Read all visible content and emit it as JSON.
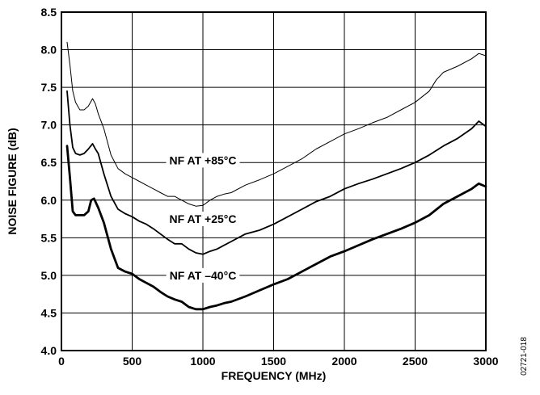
{
  "chart_data": {
    "type": "line",
    "xlabel": "FREQUENCY (MHz)",
    "ylabel": "NOISE FIGURE (dB)",
    "xlim": [
      0,
      3000
    ],
    "ylim": [
      4.0,
      8.5
    ],
    "x_ticks": [
      0,
      500,
      1000,
      1500,
      2000,
      2500,
      3000
    ],
    "y_ticks": [
      4.0,
      4.5,
      5.0,
      5.5,
      6.0,
      6.5,
      7.0,
      7.5,
      8.0,
      8.5
    ],
    "y_tick_labels": [
      "4.0",
      "4.5",
      "5.0",
      "5.5",
      "6.0",
      "6.5",
      "7.0",
      "7.5",
      "8.0",
      "8.5"
    ],
    "grid": true,
    "side_label": "02721-018",
    "series": [
      {
        "name": "NF AT +85°C",
        "line_style": "thin",
        "points": [
          [
            40,
            8.1
          ],
          [
            60,
            7.8
          ],
          [
            80,
            7.45
          ],
          [
            100,
            7.3
          ],
          [
            130,
            7.2
          ],
          [
            160,
            7.2
          ],
          [
            190,
            7.25
          ],
          [
            220,
            7.35
          ],
          [
            240,
            7.28
          ],
          [
            260,
            7.15
          ],
          [
            300,
            6.95
          ],
          [
            350,
            6.6
          ],
          [
            400,
            6.42
          ],
          [
            450,
            6.35
          ],
          [
            500,
            6.3
          ],
          [
            550,
            6.25
          ],
          [
            600,
            6.2
          ],
          [
            650,
            6.15
          ],
          [
            700,
            6.1
          ],
          [
            750,
            6.05
          ],
          [
            800,
            6.05
          ],
          [
            850,
            6.0
          ],
          [
            900,
            5.95
          ],
          [
            950,
            5.92
          ],
          [
            1000,
            5.93
          ],
          [
            1050,
            6.0
          ],
          [
            1100,
            6.05
          ],
          [
            1150,
            6.08
          ],
          [
            1200,
            6.1
          ],
          [
            1300,
            6.2
          ],
          [
            1400,
            6.27
          ],
          [
            1500,
            6.35
          ],
          [
            1600,
            6.45
          ],
          [
            1700,
            6.55
          ],
          [
            1800,
            6.68
          ],
          [
            1900,
            6.78
          ],
          [
            2000,
            6.88
          ],
          [
            2100,
            6.95
          ],
          [
            2200,
            7.03
          ],
          [
            2300,
            7.1
          ],
          [
            2400,
            7.2
          ],
          [
            2500,
            7.3
          ],
          [
            2600,
            7.45
          ],
          [
            2650,
            7.6
          ],
          [
            2700,
            7.7
          ],
          [
            2800,
            7.78
          ],
          [
            2900,
            7.88
          ],
          [
            2950,
            7.95
          ],
          [
            3000,
            7.92
          ]
        ]
      },
      {
        "name": "NF AT +25°C",
        "line_style": "medium",
        "points": [
          [
            40,
            7.45
          ],
          [
            60,
            7.0
          ],
          [
            80,
            6.7
          ],
          [
            100,
            6.62
          ],
          [
            130,
            6.6
          ],
          [
            160,
            6.62
          ],
          [
            190,
            6.68
          ],
          [
            220,
            6.75
          ],
          [
            240,
            6.68
          ],
          [
            260,
            6.62
          ],
          [
            300,
            6.35
          ],
          [
            350,
            6.05
          ],
          [
            400,
            5.88
          ],
          [
            450,
            5.82
          ],
          [
            500,
            5.78
          ],
          [
            550,
            5.72
          ],
          [
            600,
            5.68
          ],
          [
            650,
            5.62
          ],
          [
            700,
            5.55
          ],
          [
            750,
            5.48
          ],
          [
            800,
            5.42
          ],
          [
            850,
            5.42
          ],
          [
            900,
            5.35
          ],
          [
            950,
            5.3
          ],
          [
            1000,
            5.28
          ],
          [
            1050,
            5.32
          ],
          [
            1100,
            5.35
          ],
          [
            1150,
            5.4
          ],
          [
            1200,
            5.45
          ],
          [
            1300,
            5.55
          ],
          [
            1400,
            5.6
          ],
          [
            1500,
            5.68
          ],
          [
            1600,
            5.78
          ],
          [
            1700,
            5.88
          ],
          [
            1800,
            5.98
          ],
          [
            1900,
            6.05
          ],
          [
            2000,
            6.15
          ],
          [
            2100,
            6.22
          ],
          [
            2200,
            6.28
          ],
          [
            2300,
            6.35
          ],
          [
            2400,
            6.42
          ],
          [
            2500,
            6.5
          ],
          [
            2600,
            6.6
          ],
          [
            2700,
            6.72
          ],
          [
            2800,
            6.82
          ],
          [
            2900,
            6.95
          ],
          [
            2950,
            7.05
          ],
          [
            3000,
            6.98
          ]
        ]
      },
      {
        "name": "NF AT –40°C",
        "line_style": "thick",
        "points": [
          [
            40,
            6.72
          ],
          [
            60,
            6.3
          ],
          [
            80,
            5.85
          ],
          [
            100,
            5.8
          ],
          [
            130,
            5.8
          ],
          [
            160,
            5.8
          ],
          [
            190,
            5.85
          ],
          [
            210,
            6.0
          ],
          [
            230,
            6.02
          ],
          [
            260,
            5.9
          ],
          [
            300,
            5.7
          ],
          [
            350,
            5.35
          ],
          [
            400,
            5.1
          ],
          [
            450,
            5.05
          ],
          [
            500,
            5.02
          ],
          [
            550,
            4.95
          ],
          [
            600,
            4.9
          ],
          [
            650,
            4.85
          ],
          [
            700,
            4.78
          ],
          [
            750,
            4.72
          ],
          [
            800,
            4.68
          ],
          [
            850,
            4.65
          ],
          [
            900,
            4.58
          ],
          [
            950,
            4.55
          ],
          [
            1000,
            4.55
          ],
          [
            1050,
            4.58
          ],
          [
            1100,
            4.6
          ],
          [
            1150,
            4.63
          ],
          [
            1200,
            4.65
          ],
          [
            1300,
            4.72
          ],
          [
            1400,
            4.8
          ],
          [
            1500,
            4.88
          ],
          [
            1600,
            4.95
          ],
          [
            1700,
            5.05
          ],
          [
            1800,
            5.15
          ],
          [
            1900,
            5.25
          ],
          [
            2000,
            5.32
          ],
          [
            2100,
            5.4
          ],
          [
            2200,
            5.48
          ],
          [
            2300,
            5.55
          ],
          [
            2400,
            5.62
          ],
          [
            2500,
            5.7
          ],
          [
            2600,
            5.8
          ],
          [
            2700,
            5.95
          ],
          [
            2800,
            6.05
          ],
          [
            2900,
            6.15
          ],
          [
            2950,
            6.22
          ],
          [
            3000,
            6.18
          ]
        ]
      }
    ],
    "annotations": [
      {
        "text": "NF AT +85°C",
        "series": "NF AT +85°C",
        "x": 1000,
        "y": 6.53
      },
      {
        "text": "NF AT +25°C",
        "series": "NF AT +25°C",
        "x": 1000,
        "y": 5.75
      },
      {
        "text": "NF AT –40°C",
        "series": "NF AT –40°C",
        "x": 1000,
        "y": 5.0
      }
    ]
  }
}
